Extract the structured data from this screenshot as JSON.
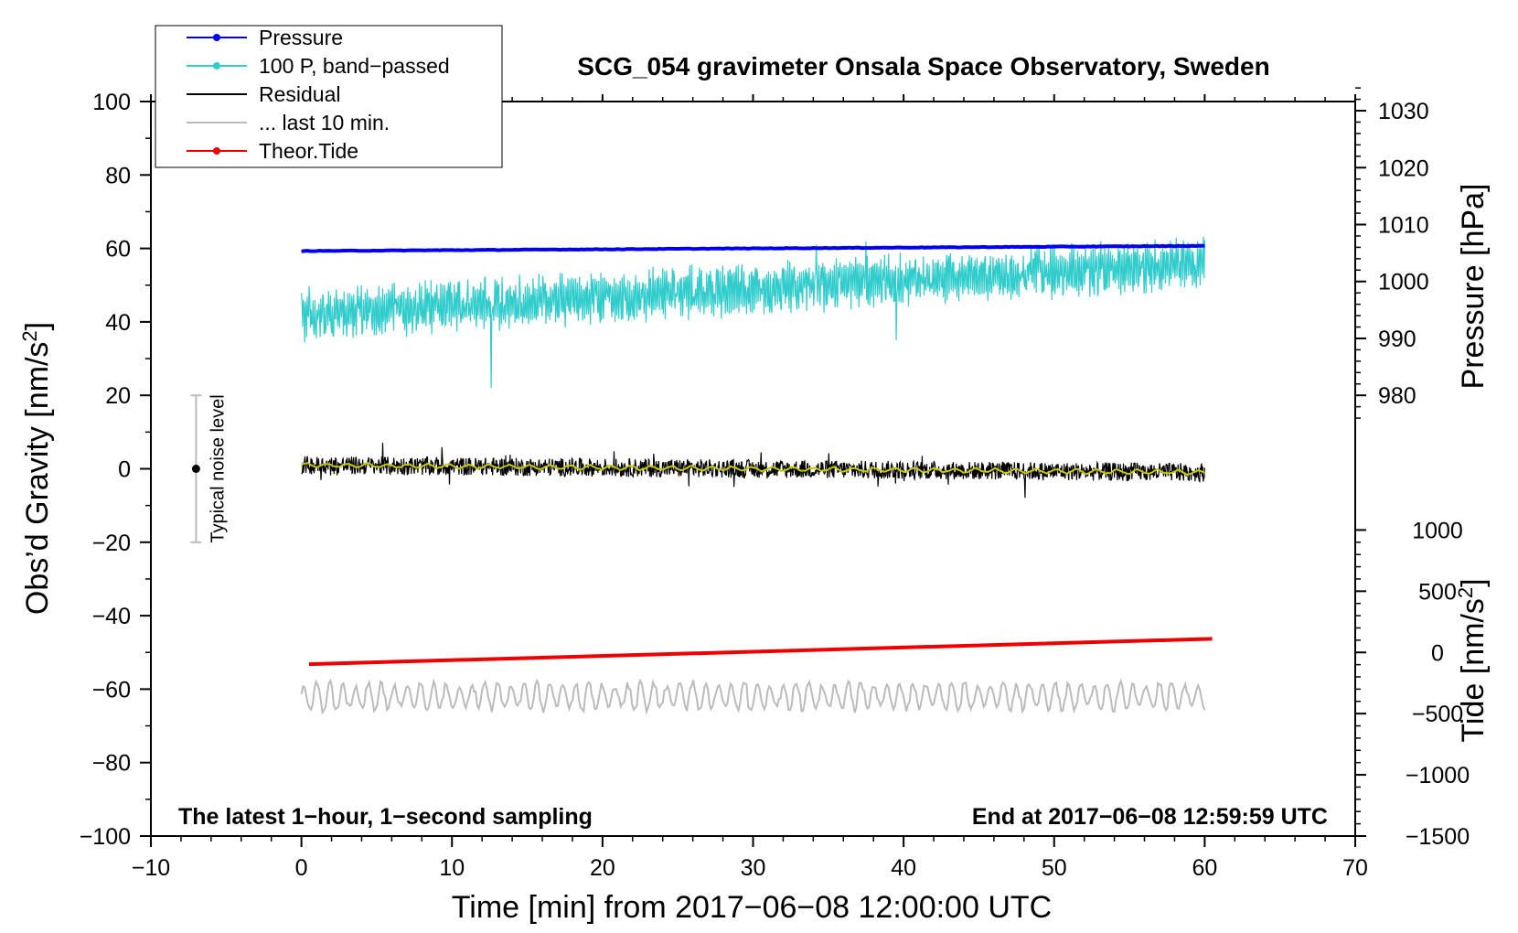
{
  "chart_data": {
    "type": "line",
    "title": "SCG_054 gravimeter Onsala Space Observatory, Sweden",
    "xlabel": "Time [min] from 2017−06−08 12:00:00 UTC",
    "ylabel_left_main": "Obs’d Gravity [nm/s",
    "ylabel_left_sup": "2",
    "ylabel_left_tail": "]",
    "ylabel_right_pressure": "Pressure [hPa]",
    "ylabel_right_tide_main": "Tide [nm/s",
    "ylabel_right_tide_sup": "2",
    "ylabel_right_tide_tail": "]",
    "xlim": [
      -10,
      70
    ],
    "ylim": [
      -100,
      100
    ],
    "x_ticks": [
      -10,
      0,
      10,
      20,
      30,
      40,
      50,
      60,
      70
    ],
    "x_tick_labels": [
      "−10",
      "0",
      "10",
      "20",
      "30",
      "40",
      "50",
      "60",
      "70"
    ],
    "y_ticks": [
      -100,
      -80,
      -60,
      -40,
      -20,
      0,
      20,
      40,
      60,
      80,
      100
    ],
    "y_tick_labels": [
      "−100",
      "−80",
      "−60",
      "−40",
      "−20",
      "0",
      "20",
      "40",
      "60",
      "80",
      "100"
    ],
    "pressure_axis": {
      "ticks": [
        980,
        990,
        1000,
        1010,
        1020,
        1030
      ],
      "tick_labels": [
        "980",
        "990",
        "1000",
        "1010",
        "1020",
        "1030"
      ],
      "gravity_at_980": 20,
      "gravity_per_hpa": 1.55
    },
    "tide_axis": {
      "ticks": [
        -1500,
        -1000,
        -500,
        0,
        500,
        1000
      ],
      "tick_labels": [
        "−1500",
        "−1000",
        "−500",
        "0",
        "500",
        "1000"
      ],
      "gravity_at_0": -50,
      "gravity_per_unit": 0.03333
    },
    "legend": {
      "placement": "top-left",
      "entries": [
        {
          "label": "Pressure",
          "color": "#0000ee",
          "marker": true
        },
        {
          "label": "100 P, band−passed",
          "color": "#33cccc",
          "marker": true
        },
        {
          "label": "Residual",
          "color": "#000000",
          "marker": false
        },
        {
          "label": "... last 10 min.",
          "color": "#bbbbbb",
          "marker": false
        },
        {
          "label": "Theor.Tide",
          "color": "#ee0000",
          "marker": true
        }
      ]
    },
    "noise_bar": {
      "x": -7,
      "center": 0,
      "low": -20,
      "high": 20,
      "label": "Typical noise level"
    },
    "annotation_left": "The latest 1−hour, 1−second sampling",
    "annotation_right": "End at 2017−06−08 12:59:59 UTC",
    "series": [
      {
        "name": "Pressure",
        "color": "#0000ee",
        "x_range": [
          0,
          60
        ],
        "start": 59.3,
        "end": 60.7,
        "noise": 0.15
      },
      {
        "name": "100 P, band−passed",
        "color": "#33cccc",
        "x_range": [
          0,
          60
        ],
        "start": 42,
        "end": 56,
        "amplitude": 6,
        "spikes": [
          {
            "x": 12.6,
            "y": 22
          },
          {
            "x": 39.5,
            "y": 35
          },
          {
            "x": 37.5,
            "y": 62
          },
          {
            "x": 34.2,
            "y": 61
          }
        ]
      },
      {
        "name": "Residual",
        "color": "#000000",
        "x_range": [
          0,
          60
        ],
        "start": 1,
        "end": -1,
        "amplitude": 2.5
      },
      {
        "name": "Residual smoothed",
        "color": "#c8c800",
        "x_range": [
          0,
          60
        ],
        "start": 1,
        "end": -1,
        "amplitude": 0.5
      },
      {
        "name": "Theor.Tide",
        "color": "#ee0000",
        "x_range": [
          0.5,
          60.5
        ],
        "start": -53.2,
        "end": -46.3
      },
      {
        "name": "... last 10 min.",
        "color": "#bbbbbb",
        "x_range": [
          0,
          60
        ],
        "center": -62,
        "amplitude": 3.5
      }
    ]
  }
}
